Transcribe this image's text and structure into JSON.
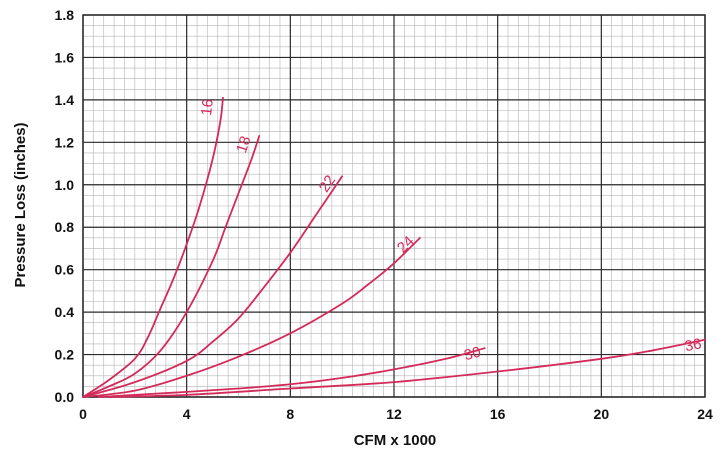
{
  "chart_data": {
    "type": "line",
    "title": "",
    "xlabel": "CFM x 1000",
    "ylabel": "Pressure Loss (inches)",
    "xlim": [
      0,
      24
    ],
    "ylim": [
      0,
      1.8
    ],
    "x_ticks": [
      "0",
      "4",
      "8",
      "12",
      "16",
      "20",
      "24"
    ],
    "y_ticks": [
      "0.0",
      "0.2",
      "0.4",
      "0.6",
      "0.8",
      "1.0",
      "1.2",
      "1.4",
      "1.6",
      "1.8"
    ],
    "grid": true,
    "series": [
      {
        "name": "16",
        "x": [
          0,
          1.0,
          2.0,
          2.5,
          3.0,
          3.5,
          4.0,
          4.5,
          5.0,
          5.3,
          5.4
        ],
        "y": [
          0,
          0.08,
          0.18,
          0.28,
          0.42,
          0.56,
          0.72,
          0.9,
          1.12,
          1.3,
          1.41
        ]
      },
      {
        "name": "18",
        "x": [
          0,
          1.0,
          2.0,
          3.0,
          4.0,
          5.0,
          5.5,
          6.0,
          6.5,
          6.8
        ],
        "y": [
          0,
          0.05,
          0.11,
          0.22,
          0.4,
          0.64,
          0.8,
          0.96,
          1.12,
          1.23
        ]
      },
      {
        "name": "22",
        "x": [
          0,
          2.0,
          4.0,
          5.0,
          6.0,
          7.0,
          8.0,
          9.0,
          10.0
        ],
        "y": [
          0,
          0.07,
          0.17,
          0.26,
          0.37,
          0.52,
          0.68,
          0.86,
          1.04
        ]
      },
      {
        "name": "24",
        "x": [
          0,
          2.0,
          4.0,
          6.0,
          8.0,
          10.0,
          11.0,
          12.0,
          13.0
        ],
        "y": [
          0,
          0.03,
          0.1,
          0.19,
          0.3,
          0.44,
          0.53,
          0.63,
          0.75
        ]
      },
      {
        "name": "30",
        "x": [
          0.6,
          2.0,
          4.0,
          6.0,
          8.0,
          10.0,
          12.0,
          14.0,
          15.5
        ],
        "y": [
          0,
          0.01,
          0.024,
          0.04,
          0.06,
          0.09,
          0.13,
          0.18,
          0.23
        ]
      },
      {
        "name": "36",
        "x": [
          1.0,
          4.0,
          8.0,
          12.0,
          16.0,
          20.0,
          22.0,
          24.0
        ],
        "y": [
          0,
          0.01,
          0.04,
          0.07,
          0.12,
          0.18,
          0.22,
          0.27
        ]
      }
    ],
    "colors": {
      "curve": "#d42a5a",
      "grid_minor": "#b4b4b4",
      "grid_major": "#2a2a2a"
    }
  }
}
